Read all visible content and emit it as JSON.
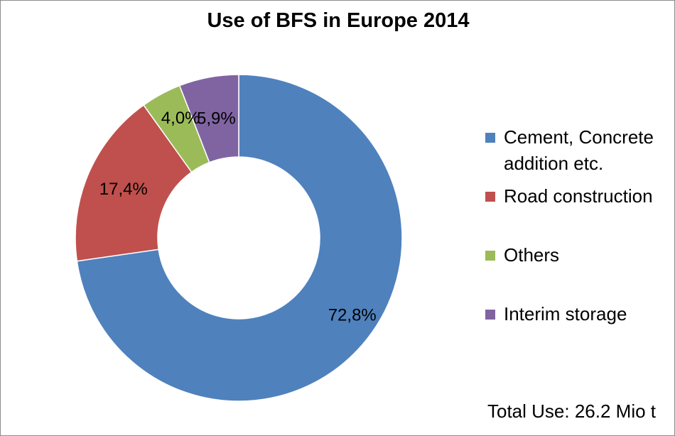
{
  "chart_data": {
    "type": "pie",
    "title": "Use of BFS in Europe 2014",
    "categories": [
      "Cement, Concrete addition etc.",
      "Road construction",
      "Others",
      "Interim storage"
    ],
    "values": [
      72.8,
      17.4,
      4.0,
      5.9
    ],
    "value_labels": [
      "72,8%",
      "17,4%",
      "4,0%",
      "5,9%"
    ],
    "unit": "%",
    "donut": true,
    "colors": [
      "#4f81bd",
      "#c0504d",
      "#9bbb59",
      "#8064a2"
    ],
    "legend_position": "right",
    "annotation": "Total Use: 26.2 Mio t"
  }
}
